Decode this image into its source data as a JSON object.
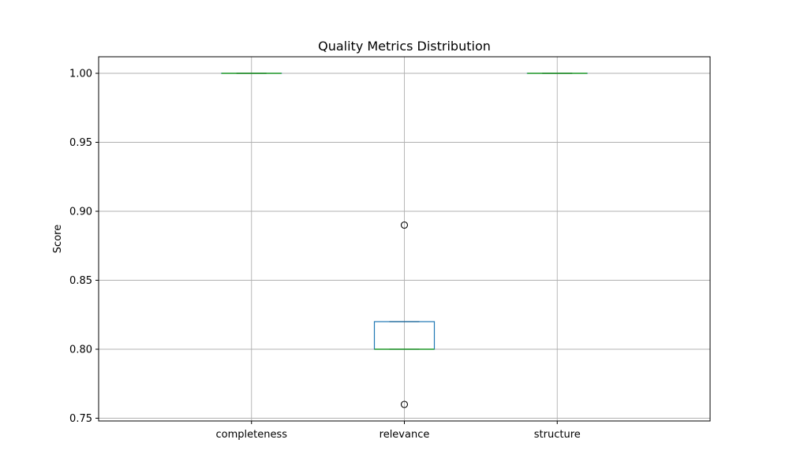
{
  "chart_data": {
    "type": "box",
    "title": "Quality Metrics Distribution",
    "xlabel": "",
    "ylabel": "Score",
    "ylim": [
      0.748,
      1.012
    ],
    "yticks": [
      0.75,
      0.8,
      0.85,
      0.9,
      0.95,
      1.0
    ],
    "ytick_labels": [
      "0.75",
      "0.80",
      "0.85",
      "0.90",
      "0.95",
      "1.00"
    ],
    "grid": true,
    "categories": [
      "completeness",
      "relevance",
      "structure"
    ],
    "boxes": [
      {
        "category": "completeness",
        "whisker_low": 1.0,
        "q1": 1.0,
        "median": 1.0,
        "q3": 1.0,
        "whisker_high": 1.0,
        "outliers": []
      },
      {
        "category": "relevance",
        "whisker_low": 0.8,
        "q1": 0.8,
        "median": 0.8,
        "q3": 0.82,
        "whisker_high": 0.82,
        "outliers": [
          0.76,
          0.89
        ]
      },
      {
        "category": "structure",
        "whisker_low": 1.0,
        "q1": 1.0,
        "median": 1.0,
        "q3": 1.0,
        "whisker_high": 1.0,
        "outliers": []
      }
    ],
    "colors": {
      "box": "#1f77b4",
      "median": "#2ca02c",
      "whisker": "#000000",
      "grid": "#b0b0b0"
    }
  }
}
